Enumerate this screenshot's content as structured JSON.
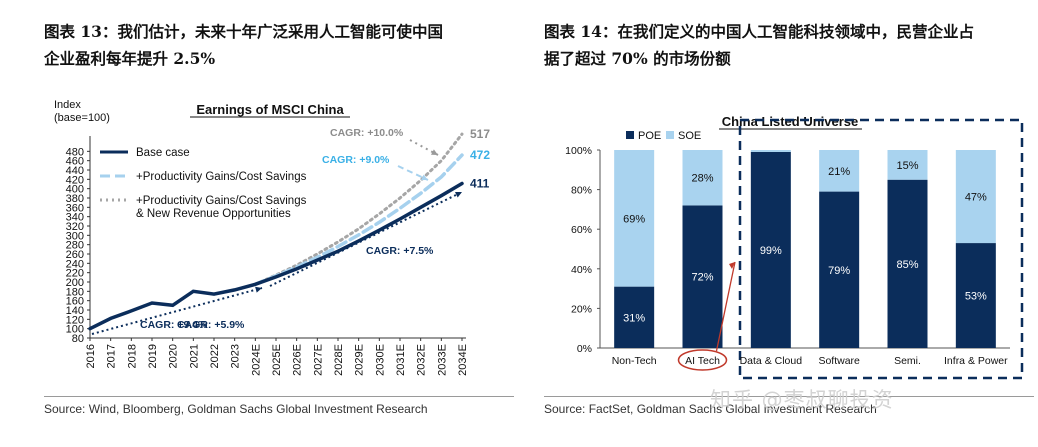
{
  "left": {
    "title": "图表 13：我们估计，未来十年广泛采用人工智能可使中国\n企业盈利每年提升 2.5%",
    "source": "Source: Wind, Bloomberg, Goldman Sachs Global Investment Research"
  },
  "right": {
    "title": "图表 14：在我们定义的中国人工智能科技领域中，民营企业占\n据了超过 70% 的市场份额",
    "source": "Source: FactSet, Goldman Sachs Global Investment Research"
  },
  "watermark": "知乎 @枣叔聊投资",
  "colors": {
    "navy": "#0b2d5b",
    "light_blue": "#a9d3ef",
    "dashed_blue": "#a6d1ee",
    "dotted_grey": "#a6a6a6",
    "cagr_blue": "#3ab0e6",
    "red": "#c0392b"
  },
  "chart_data": [
    {
      "type": "line",
      "title": "Earnings of MSCI China",
      "ylabel": "Index\n(base=100)",
      "x": [
        "2016",
        "2017",
        "2018",
        "2019",
        "2020",
        "2021",
        "2022",
        "2023",
        "2024E",
        "2025E",
        "2026E",
        "2027E",
        "2028E",
        "2029E",
        "2030E",
        "2031E",
        "2032E",
        "2033E",
        "2034E"
      ],
      "ylim": [
        80,
        500
      ],
      "yticks": [
        80,
        100,
        120,
        140,
        160,
        180,
        200,
        220,
        240,
        260,
        280,
        300,
        320,
        340,
        360,
        380,
        400,
        420,
        440,
        460,
        480
      ],
      "legend": {
        "placement": "top-left",
        "entries": [
          "Base case",
          "+Productivity Gains/Cost Savings",
          "+Productivity Gains/Cost Savings\n& New Revenue Opportunities"
        ]
      },
      "series": [
        {
          "name": "Base case",
          "style": "solid",
          "color": "#0b2d5b",
          "values": [
            100,
            122,
            138,
            155,
            150,
            180,
            174,
            183,
            195,
            211,
            228,
            247,
            266,
            288,
            311,
            335,
            360,
            385,
            411
          ]
        },
        {
          "name": "+Productivity Gains/Cost Savings",
          "style": "dashed",
          "color": "#a6d1ee",
          "values": [
            null,
            null,
            null,
            null,
            null,
            null,
            null,
            null,
            195,
            213,
            232,
            253,
            276,
            301,
            328,
            358,
            390,
            425,
            472
          ]
        },
        {
          "name": "+Productivity Gains/Cost Savings & New Revenue Opportunities",
          "style": "dotted",
          "color": "#a6a6a6",
          "values": [
            null,
            null,
            null,
            null,
            null,
            null,
            null,
            null,
            195,
            215,
            236,
            260,
            286,
            314,
            346,
            380,
            418,
            460,
            517
          ]
        }
      ],
      "end_labels": [
        {
          "text": "517",
          "color": "#8c8c8c"
        },
        {
          "text": "472",
          "color": "#3ab0e6"
        },
        {
          "text": "411",
          "color": "#0b2d5b"
        }
      ],
      "annotations": [
        {
          "text": "CAGR: +10.0%",
          "color": "#8c8c8c"
        },
        {
          "text": "CAGR: +9.0%",
          "color": "#3ab0e6"
        },
        {
          "text": "CAGR: +7.5%",
          "color": "#0b2d5b"
        },
        {
          "text": "CAGR: +9.4%",
          "color": "#0b2d5b"
        },
        {
          "text": "CAGR: +5.9%",
          "color": "#0b2d5b"
        }
      ],
      "grid": false
    },
    {
      "type": "bar",
      "stacked": true,
      "title": "China Listed Universe",
      "categories": [
        "Non-Tech",
        "AI Tech",
        "Data & Cloud",
        "Software",
        "Semi.",
        "Infra & Power"
      ],
      "ylim": [
        0,
        100
      ],
      "yticks": [
        "0%",
        "20%",
        "40%",
        "60%",
        "80%",
        "100%"
      ],
      "legend": {
        "placement": "top-left",
        "entries": [
          "POE",
          "SOE"
        ]
      },
      "series": [
        {
          "name": "POE",
          "color": "#0b2d5b",
          "values": [
            31,
            72,
            99,
            79,
            85,
            53
          ],
          "labels": [
            "31%",
            "72%",
            "99%",
            "79%",
            "85%",
            "53%"
          ]
        },
        {
          "name": "SOE",
          "color": "#a9d3ef",
          "values": [
            69,
            28,
            1,
            21,
            15,
            47
          ],
          "labels": [
            "69%",
            "28%",
            "",
            "21%",
            "15%",
            "47%"
          ]
        }
      ],
      "highlight_category": "AI Tech",
      "grid": false
    }
  ]
}
